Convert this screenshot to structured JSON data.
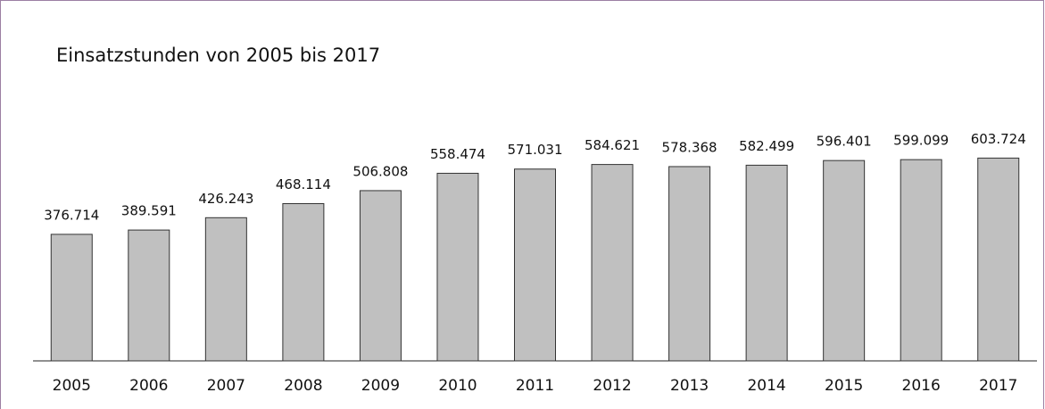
{
  "chart_data": {
    "type": "bar",
    "title": "Einsatzstunden von 2005 bis 2017",
    "categories": [
      "2005",
      "2006",
      "2007",
      "2008",
      "2009",
      "2010",
      "2011",
      "2012",
      "2013",
      "2014",
      "2015",
      "2016",
      "2017"
    ],
    "values": [
      376714,
      389591,
      426243,
      468114,
      506808,
      558474,
      571031,
      584621,
      578368,
      582499,
      596401,
      599099,
      603724
    ],
    "value_labels": [
      "376.714",
      "389.591",
      "426.243",
      "468.114",
      "506.808",
      "558.474",
      "571.031",
      "584.621",
      "578.368",
      "582.499",
      "596.401",
      "599.099",
      "603.724"
    ],
    "color": "#c0c0c0",
    "ylim": [
      0,
      1000000
    ]
  }
}
